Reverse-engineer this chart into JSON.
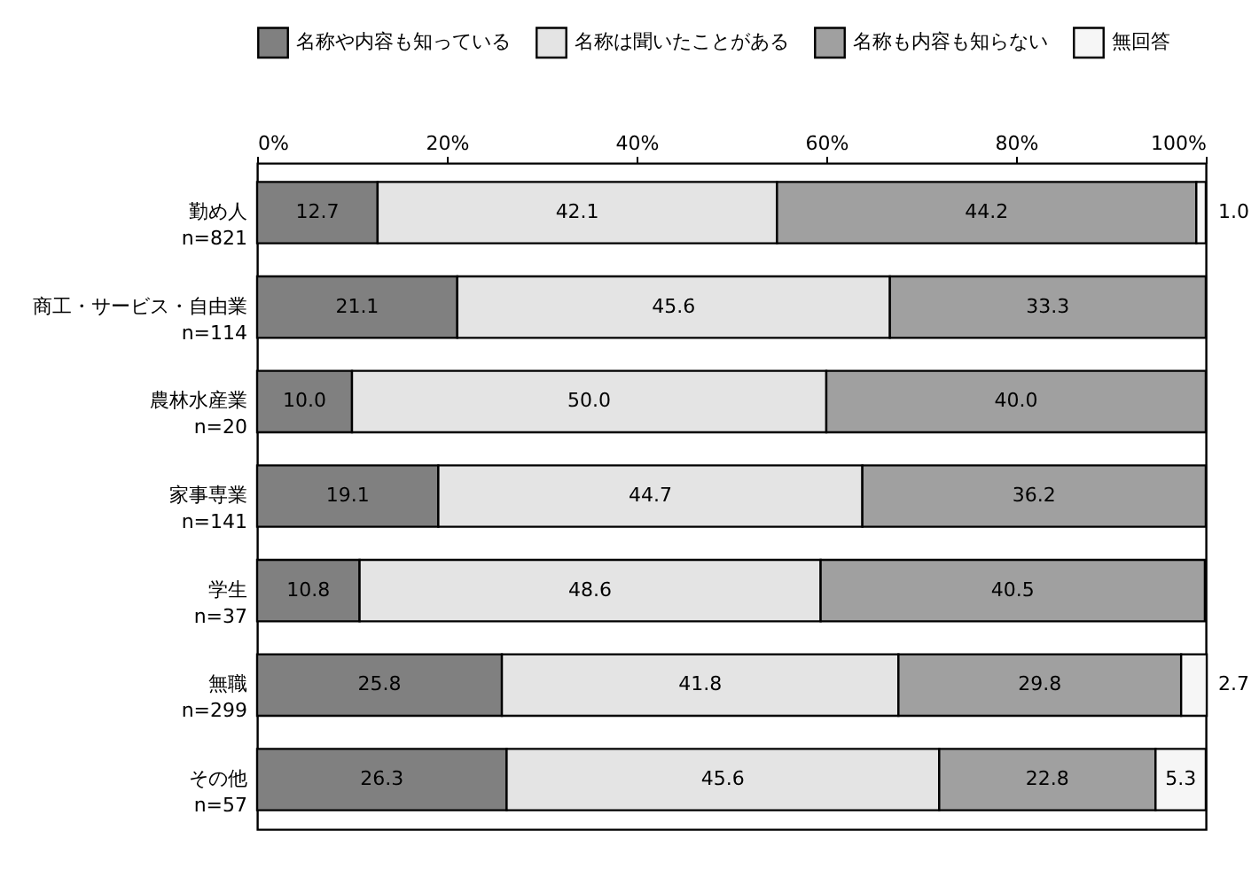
{
  "chart_data": {
    "type": "bar",
    "orientation": "horizontal",
    "stacked": true,
    "categories": [
      "勤め人 n=821",
      "商工・サービス・自由業 n=114",
      "農林水産業 n=20",
      "家事専業 n=141",
      "学生 n=37",
      "無職 n=299",
      "その他 n=57"
    ],
    "series": [
      {
        "name": "名称や内容も知っている",
        "color": "#808080",
        "values": [
          12.7,
          21.1,
          10.0,
          19.1,
          10.8,
          25.8,
          26.3
        ],
        "value_labels": [
          "12.7",
          "21.1",
          "10.0",
          "19.1",
          "10.8",
          "25.8",
          "26.3"
        ]
      },
      {
        "name": "名称は聞いたことがある",
        "color": "#e4e4e4",
        "values": [
          42.1,
          45.6,
          50.0,
          44.7,
          48.6,
          41.8,
          45.6
        ],
        "value_labels": [
          "42.1",
          "45.6",
          "50.0",
          "44.7",
          "48.6",
          "41.8",
          "45.6"
        ]
      },
      {
        "name": "名称も内容も知らない",
        "color": "#a0a0a0",
        "values": [
          44.2,
          33.3,
          40.0,
          36.2,
          40.5,
          29.8,
          22.8
        ],
        "value_labels": [
          "44.2",
          "33.3",
          "40.0",
          "36.2",
          "40.5",
          "29.8",
          "22.8"
        ]
      },
      {
        "name": "無回答",
        "color": "#f6f6f6",
        "values": [
          1.0,
          null,
          null,
          null,
          null,
          2.7,
          5.3
        ],
        "value_labels": [
          "1.0",
          null,
          null,
          null,
          null,
          "2.7",
          "5.3"
        ]
      }
    ],
    "xlim": [
      0,
      100
    ],
    "xticks": [
      {
        "value": 0,
        "label": "0%"
      },
      {
        "value": 20,
        "label": "20%"
      },
      {
        "value": 40,
        "label": "40%"
      },
      {
        "value": 60,
        "label": "60%"
      },
      {
        "value": 80,
        "label": "80%"
      },
      {
        "value": 100,
        "label": "100%"
      }
    ],
    "legend": "top",
    "grid": false
  }
}
